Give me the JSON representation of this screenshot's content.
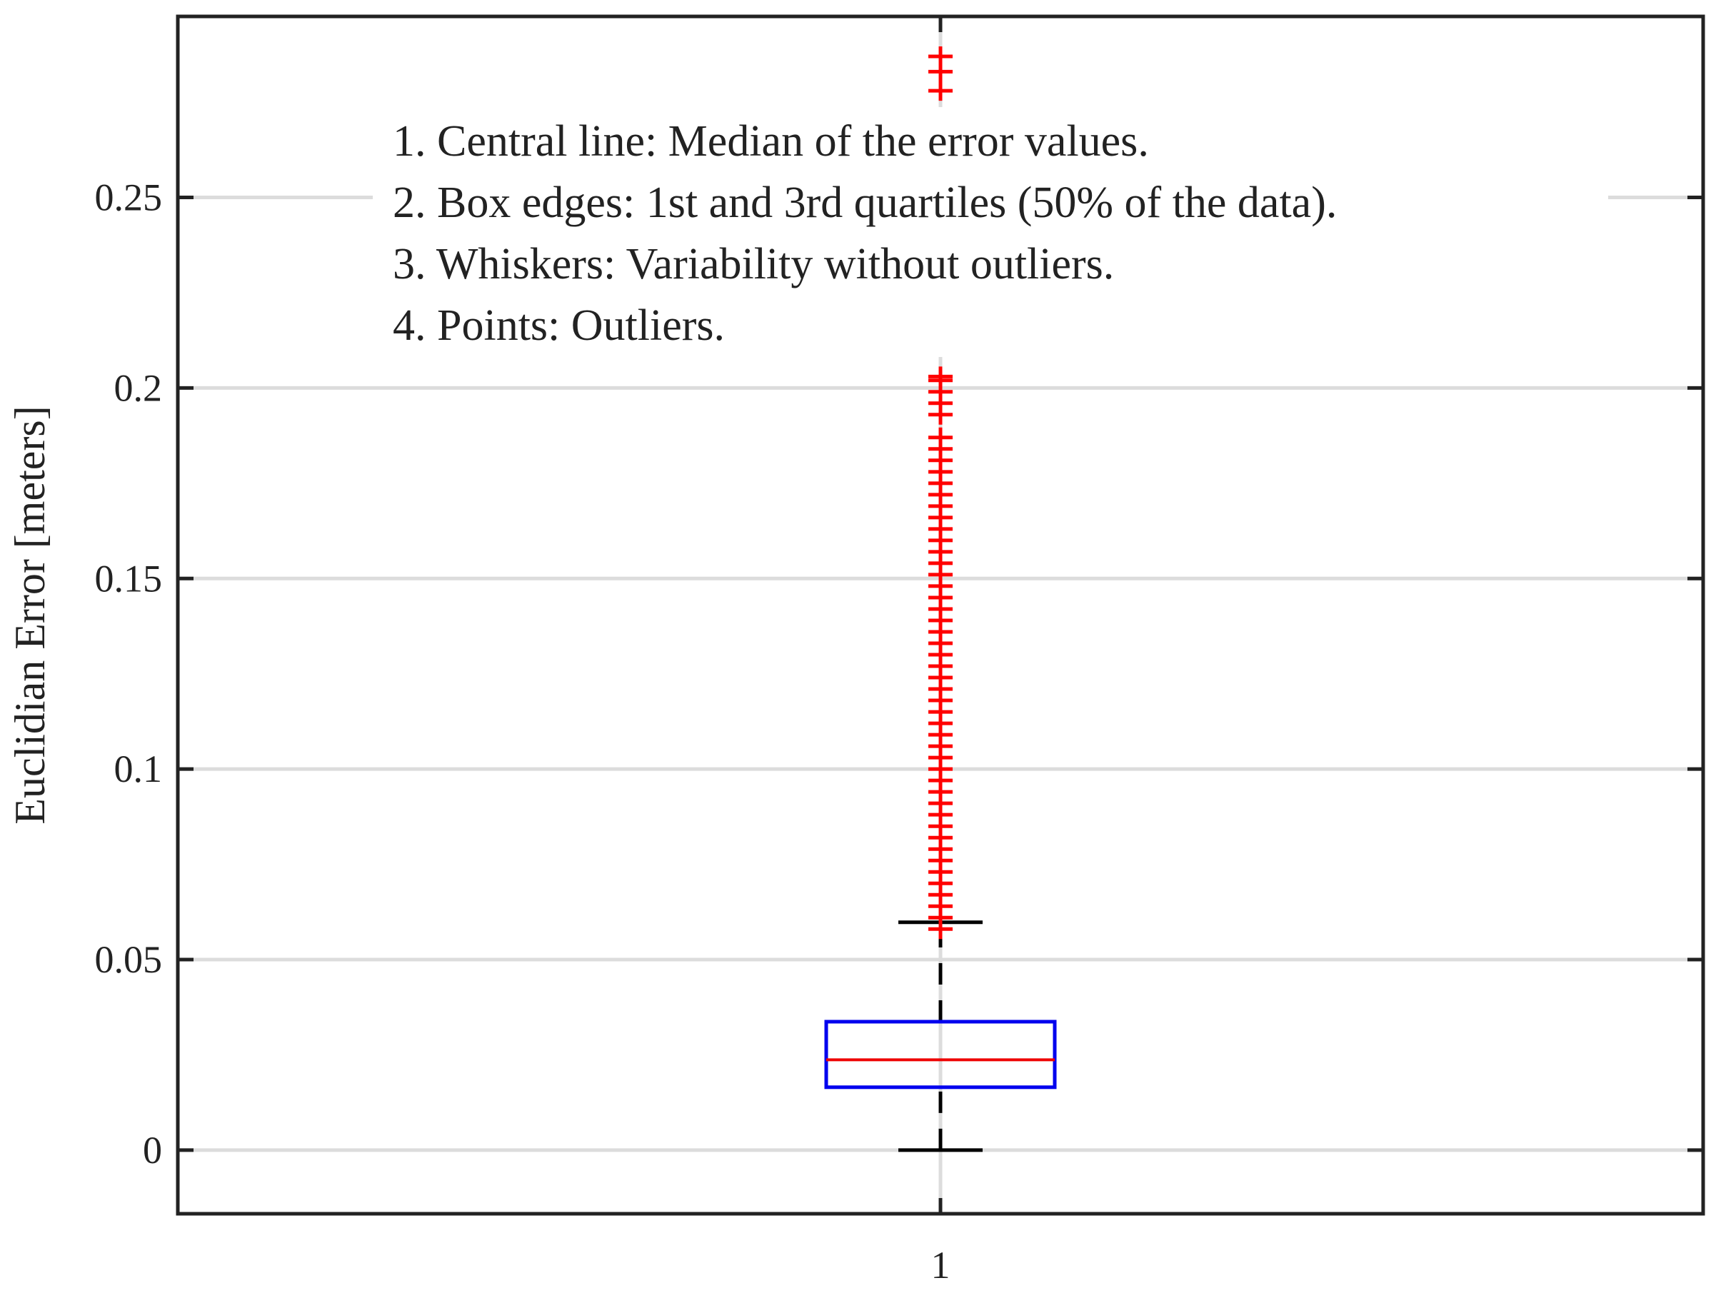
{
  "chart_data": {
    "type": "box",
    "y_label": "Euclidian Error [meters]",
    "categories": [
      "1"
    ],
    "xlim": [
      0.5,
      1.5
    ],
    "xticks": [
      1
    ],
    "ylim": [
      -0.0167,
      0.2975
    ],
    "yticks": [
      0,
      0.05,
      0.1,
      0.15,
      0.2,
      0.25
    ],
    "grid": true,
    "annotation": [
      "1. Central line: Median of the error values.",
      "2. Box edges: 1st and 3rd quartiles (50% of the data).",
      "3. Whiskers: Variability without outliers.",
      "4. Points: Outliers."
    ],
    "series": [
      {
        "box_color": "#0000ee",
        "median_color": "#ee0000",
        "whisker_color": "#000000",
        "outlier_color": "#ff0000",
        "whisker_low": 0,
        "q1": 0.0165,
        "median": 0.0237,
        "q3": 0.0337,
        "whisker_high": 0.0598,
        "outliers": [
          0.058,
          0.061,
          0.064,
          0.067,
          0.07,
          0.073,
          0.076,
          0.079,
          0.082,
          0.085,
          0.088,
          0.091,
          0.094,
          0.097,
          0.1,
          0.103,
          0.106,
          0.109,
          0.112,
          0.115,
          0.118,
          0.121,
          0.124,
          0.127,
          0.13,
          0.133,
          0.136,
          0.139,
          0.142,
          0.145,
          0.148,
          0.151,
          0.154,
          0.157,
          0.16,
          0.163,
          0.166,
          0.169,
          0.172,
          0.175,
          0.178,
          0.181,
          0.184,
          0.187,
          0.193,
          0.196,
          0.199,
          0.202,
          0.203,
          0.278,
          0.283,
          0.287
        ]
      }
    ]
  }
}
